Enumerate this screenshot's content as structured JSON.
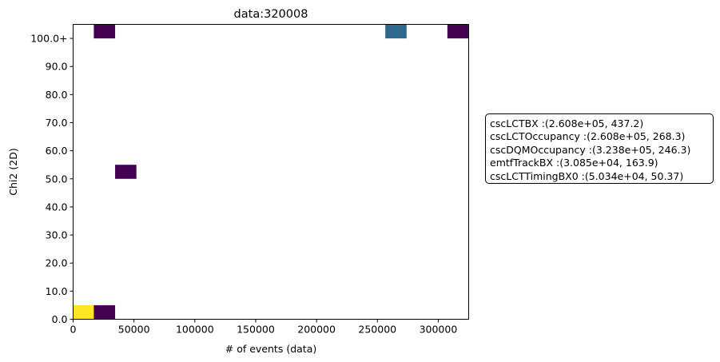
{
  "chart_data": {
    "type": "heatmap",
    "title": "data:320008",
    "xlabel": "# of events (data)",
    "ylabel": "Chi2 (2D)",
    "xlim": [
      0,
      325000
    ],
    "ylim": [
      0,
      105
    ],
    "xticks": [
      {
        "value": 0,
        "label": "0"
      },
      {
        "value": 50000,
        "label": "50000"
      },
      {
        "value": 100000,
        "label": "100000"
      },
      {
        "value": 150000,
        "label": "150000"
      },
      {
        "value": 200000,
        "label": "200000"
      },
      {
        "value": 250000,
        "label": "250000"
      },
      {
        "value": 300000,
        "label": "300000"
      }
    ],
    "yticks": [
      {
        "value": 0,
        "label": "0.0"
      },
      {
        "value": 10,
        "label": "10.0"
      },
      {
        "value": 20,
        "label": "20.0"
      },
      {
        "value": 30,
        "label": "30.0"
      },
      {
        "value": 40,
        "label": "40.0"
      },
      {
        "value": 50,
        "label": "50.0"
      },
      {
        "value": 60,
        "label": "60.0"
      },
      {
        "value": 70,
        "label": "70.0"
      },
      {
        "value": 80,
        "label": "80.0"
      },
      {
        "value": 90,
        "label": "90.0"
      },
      {
        "value": 100,
        "label": "100.0+"
      }
    ],
    "cells": [
      {
        "x0": 0,
        "x1": 17000,
        "y0": 0,
        "y1": 5,
        "color": "#fde725"
      },
      {
        "x0": 17000,
        "x1": 34500,
        "y0": 0,
        "y1": 5,
        "color": "#440154"
      },
      {
        "x0": 34500,
        "x1": 52000,
        "y0": 50,
        "y1": 55,
        "color": "#440154"
      },
      {
        "x0": 17000,
        "x1": 34500,
        "y0": 100,
        "y1": 105,
        "color": "#440154"
      },
      {
        "x0": 256500,
        "x1": 274000,
        "y0": 100,
        "y1": 105,
        "color": "#31688e"
      },
      {
        "x0": 307500,
        "x1": 325000,
        "y0": 100,
        "y1": 105,
        "color": "#440154"
      }
    ],
    "legend_placement": "right-outside",
    "legend_entries": [
      "cscLCTBX :(2.608e+05, 437.2)",
      "cscLCTOccupancy :(2.608e+05, 268.3)",
      "cscDQMOccupancy :(3.238e+05, 246.3)",
      "emtfTrackBX :(3.085e+04, 163.9)",
      "cscLCTTimingBX0 :(5.034e+04, 50.37)"
    ],
    "grid": false
  }
}
